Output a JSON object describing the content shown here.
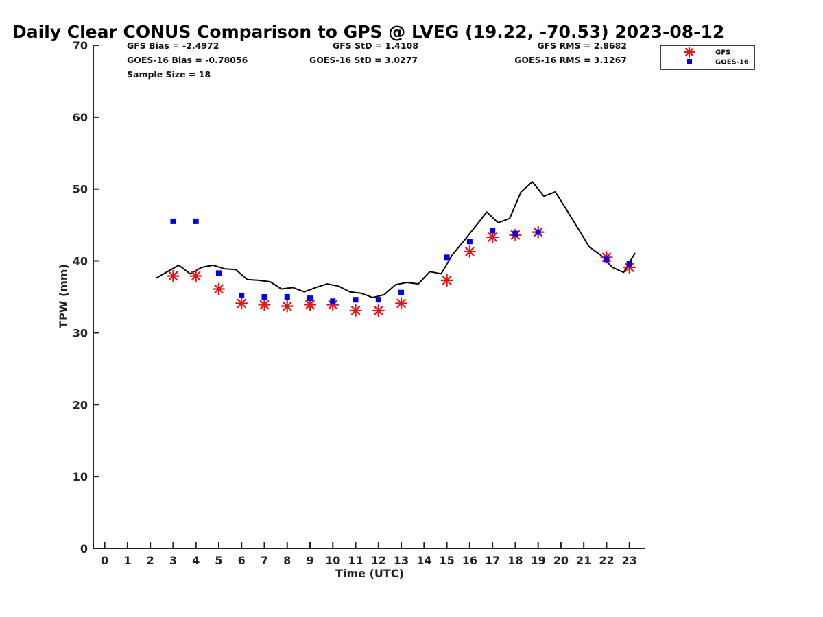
{
  "chart_data": {
    "type": "scatter",
    "title": "Daily Clear CONUS Comparison to GPS @ LVEG (19.22, -70.53) 2023-08-12",
    "xlabel": "Time (UTC)",
    "ylabel": "TPW (mm)",
    "xlim": [
      -0.5,
      23.7
    ],
    "ylim": [
      0,
      70
    ],
    "x_ticks": [
      0,
      1,
      2,
      3,
      4,
      5,
      6,
      7,
      8,
      9,
      10,
      11,
      12,
      13,
      14,
      15,
      16,
      17,
      18,
      19,
      20,
      21,
      22,
      23
    ],
    "y_ticks": [
      0,
      10,
      20,
      30,
      40,
      50,
      60,
      70
    ],
    "legend_position": "top-right",
    "stats": {
      "gfs_bias": "GFS Bias = -2.4972",
      "gfs_std": "GFS StD = 1.4108",
      "gfs_rms": "GFS RMS = 2.8682",
      "goes_bias": "GOES-16 Bias = -0.78056",
      "goes_std": "GOES-16 StD = 3.0277",
      "goes_rms": "GOES-16 RMS = 3.1267",
      "sample_size": "Sample Size = 18"
    },
    "series": [
      {
        "name": "GPS",
        "kind": "line",
        "color": "#000000",
        "x": [
          2.25,
          2.75,
          3.25,
          3.75,
          4.25,
          4.75,
          5.25,
          5.75,
          6.25,
          6.75,
          7.25,
          7.75,
          8.25,
          8.75,
          9.25,
          9.75,
          10.25,
          10.75,
          11.25,
          11.75,
          12.25,
          12.75,
          13.25,
          13.75,
          14.25,
          14.75,
          15.25,
          15.75,
          16.25,
          16.75,
          17.25,
          17.75,
          18.25,
          18.75,
          19.25,
          19.75,
          20.25,
          20.75,
          21.25,
          21.75,
          22.25,
          22.75,
          23.25
        ],
        "y": [
          37.6,
          38.5,
          39.4,
          38.2,
          39.1,
          39.4,
          38.9,
          38.8,
          37.4,
          37.3,
          37.1,
          36.1,
          36.3,
          35.7,
          36.3,
          36.8,
          36.5,
          35.7,
          35.5,
          34.9,
          35.3,
          36.7,
          37.0,
          36.8,
          38.5,
          38.2,
          40.9,
          42.8,
          44.8,
          46.8,
          45.3,
          45.9,
          49.6,
          51.0,
          49.0,
          49.6,
          47.1,
          44.5,
          41.9,
          40.8,
          39.1,
          38.4,
          41.1
        ]
      },
      {
        "name": "GFS",
        "kind": "marker-asterisk",
        "color": "#ee1111",
        "x": [
          3,
          4,
          5,
          6,
          7,
          8,
          9,
          10,
          11,
          12,
          13,
          15,
          16,
          17,
          18,
          19,
          22,
          23
        ],
        "y": [
          37.9,
          37.9,
          36.1,
          34.1,
          33.9,
          33.7,
          33.9,
          33.9,
          33.1,
          33.1,
          34.1,
          37.3,
          41.3,
          43.3,
          43.6,
          44.0,
          40.5,
          39.1
        ]
      },
      {
        "name": "GOES-16",
        "kind": "marker-square",
        "color": "#0000ee",
        "x": [
          3,
          4,
          5,
          6,
          7,
          8,
          9,
          10,
          11,
          12,
          13,
          15,
          16,
          17,
          18,
          19,
          22,
          23
        ],
        "y": [
          45.5,
          45.5,
          38.3,
          35.2,
          35.0,
          35.0,
          34.8,
          34.4,
          34.6,
          34.6,
          35.6,
          40.5,
          42.7,
          44.2,
          43.8,
          44.0,
          40.2,
          39.6
        ]
      }
    ],
    "legend": [
      {
        "label": "GFS",
        "series": "GFS"
      },
      {
        "label": "GOES-16",
        "series": "GOES-16"
      }
    ]
  }
}
